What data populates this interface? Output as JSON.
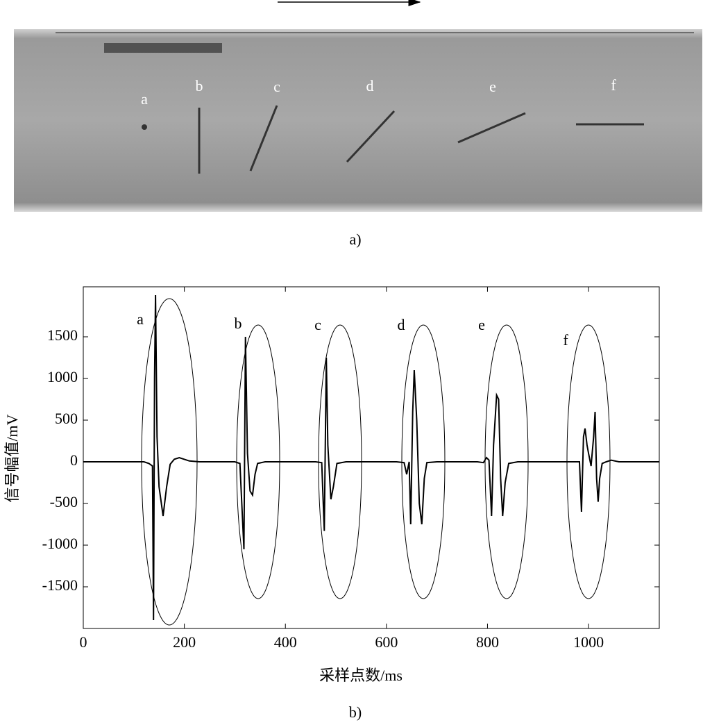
{
  "photo": {
    "labels": [
      "a",
      "b",
      "c",
      "d",
      "e",
      "f"
    ],
    "caption": "a)"
  },
  "chart_data": {
    "type": "line",
    "caption": "b)",
    "xlabel": "采样点数/ms",
    "ylabel": "信号幅值/mV",
    "annotations": [
      "a",
      "b",
      "c",
      "d",
      "e",
      "f"
    ],
    "x": [
      0,
      120,
      130,
      137,
      139,
      141,
      143,
      146,
      150,
      158,
      165,
      172,
      180,
      190,
      210,
      230,
      300,
      310,
      318,
      321,
      325,
      330,
      335,
      340,
      345,
      360,
      460,
      472,
      477,
      481,
      484,
      490,
      495,
      502,
      520,
      620,
      635,
      640,
      645,
      648,
      652,
      655,
      660,
      665,
      670,
      675,
      680,
      700,
      780,
      792,
      798,
      803,
      808,
      812,
      818,
      822,
      826,
      830,
      835,
      842,
      860,
      970,
      982,
      986,
      990,
      993,
      997,
      1000,
      1005,
      1010,
      1013,
      1016,
      1019,
      1022,
      1027,
      1035,
      1045,
      1060,
      1140
    ],
    "values": [
      0,
      0,
      -20,
      -50,
      -1900,
      1000,
      2000,
      300,
      -300,
      -650,
      -300,
      -30,
      30,
      50,
      10,
      0,
      0,
      -20,
      -1050,
      1500,
      100,
      -350,
      -400,
      -150,
      -20,
      0,
      0,
      -10,
      -830,
      1250,
      200,
      -450,
      -300,
      -20,
      0,
      0,
      -10,
      -150,
      0,
      -750,
      600,
      1100,
      500,
      -500,
      -750,
      -200,
      -10,
      0,
      0,
      -10,
      50,
      20,
      -650,
      200,
      800,
      750,
      -200,
      -650,
      -250,
      -20,
      0,
      0,
      0,
      -600,
      300,
      400,
      200,
      100,
      -50,
      300,
      600,
      -200,
      -480,
      -200,
      -20,
      0,
      20,
      0,
      0
    ],
    "color": "#000000",
    "xlim": [
      0,
      1140
    ],
    "xticks": [
      0,
      200,
      400,
      600,
      800,
      1000
    ],
    "ylim": [
      -2000,
      2100
    ],
    "yticks": [
      -1500,
      -1000,
      -500,
      0,
      500,
      1000,
      1500
    ]
  }
}
